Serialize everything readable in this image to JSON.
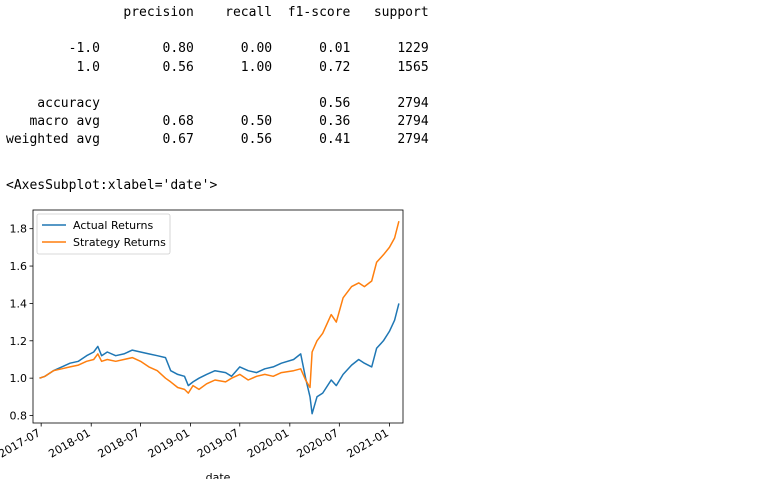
{
  "report": {
    "header": [
      "precision",
      "recall",
      "f1-score",
      "support"
    ],
    "rows": [
      {
        "label": "-1.0",
        "precision": "0.80",
        "recall": "0.00",
        "f1": "0.01",
        "support": "1229"
      },
      {
        "label": "1.0",
        "precision": "0.56",
        "recall": "1.00",
        "f1": "0.72",
        "support": "1565"
      },
      {
        "label": "",
        "precision": "",
        "recall": "",
        "f1": "",
        "support": ""
      },
      {
        "label": "accuracy",
        "precision": "",
        "recall": "",
        "f1": "0.56",
        "support": "2794"
      },
      {
        "label": "macro avg",
        "precision": "0.68",
        "recall": "0.50",
        "f1": "0.36",
        "support": "2794"
      },
      {
        "label": "weighted avg",
        "precision": "0.67",
        "recall": "0.56",
        "f1": "0.41",
        "support": "2794"
      }
    ]
  },
  "output_repr": "<AxesSubplot:xlabel='date'>",
  "chart_data": {
    "type": "line",
    "xlabel": "date",
    "ylabel": "",
    "xlim": [
      "2017-06-01",
      "2021-02-20"
    ],
    "ylim": [
      0.76,
      1.9
    ],
    "yticks": [
      0.8,
      1.0,
      1.2,
      1.4,
      1.6,
      1.8
    ],
    "ytick_labels": [
      "0.8",
      "1.0",
      "1.2",
      "1.4",
      "1.6",
      "1.8"
    ],
    "xticks": [
      "2017-07-01",
      "2018-01-01",
      "2018-07-01",
      "2019-01-01",
      "2019-07-01",
      "2020-01-01",
      "2020-07-01",
      "2021-01-01"
    ],
    "xtick_labels": [
      "2017-07",
      "2018-01",
      "2018-07",
      "2019-01",
      "2019-07",
      "2020-01",
      "2020-07",
      "2021-01"
    ],
    "grid": false,
    "legend_position": "upper-left",
    "series": [
      {
        "name": "Actual Returns",
        "color": "#1f77b4",
        "points": [
          [
            "2017-06-25",
            1.0
          ],
          [
            "2017-07-15",
            1.01
          ],
          [
            "2017-08-15",
            1.04
          ],
          [
            "2017-09-15",
            1.06
          ],
          [
            "2017-10-15",
            1.08
          ],
          [
            "2017-11-15",
            1.09
          ],
          [
            "2017-12-15",
            1.12
          ],
          [
            "2018-01-10",
            1.14
          ],
          [
            "2018-01-25",
            1.17
          ],
          [
            "2018-02-08",
            1.12
          ],
          [
            "2018-03-01",
            1.14
          ],
          [
            "2018-04-01",
            1.12
          ],
          [
            "2018-05-01",
            1.13
          ],
          [
            "2018-06-01",
            1.15
          ],
          [
            "2018-07-01",
            1.14
          ],
          [
            "2018-08-01",
            1.13
          ],
          [
            "2018-09-01",
            1.12
          ],
          [
            "2018-10-01",
            1.11
          ],
          [
            "2018-10-20",
            1.04
          ],
          [
            "2018-11-15",
            1.02
          ],
          [
            "2018-12-10",
            1.01
          ],
          [
            "2018-12-24",
            0.96
          ],
          [
            "2019-01-10",
            0.98
          ],
          [
            "2019-02-01",
            1.0
          ],
          [
            "2019-03-01",
            1.02
          ],
          [
            "2019-04-01",
            1.04
          ],
          [
            "2019-05-10",
            1.03
          ],
          [
            "2019-06-01",
            1.01
          ],
          [
            "2019-07-01",
            1.06
          ],
          [
            "2019-08-01",
            1.04
          ],
          [
            "2019-09-01",
            1.03
          ],
          [
            "2019-10-01",
            1.05
          ],
          [
            "2019-11-01",
            1.06
          ],
          [
            "2019-12-01",
            1.08
          ],
          [
            "2020-01-15",
            1.1
          ],
          [
            "2020-02-10",
            1.13
          ],
          [
            "2020-02-28",
            1.0
          ],
          [
            "2020-03-15",
            0.9
          ],
          [
            "2020-03-23",
            0.81
          ],
          [
            "2020-04-10",
            0.9
          ],
          [
            "2020-05-01",
            0.92
          ],
          [
            "2020-06-01",
            0.99
          ],
          [
            "2020-06-20",
            0.96
          ],
          [
            "2020-07-15",
            1.02
          ],
          [
            "2020-08-15",
            1.07
          ],
          [
            "2020-09-10",
            1.1
          ],
          [
            "2020-10-01",
            1.08
          ],
          [
            "2020-10-28",
            1.06
          ],
          [
            "2020-11-15",
            1.16
          ],
          [
            "2020-12-10",
            1.2
          ],
          [
            "2021-01-01",
            1.25
          ],
          [
            "2021-01-20",
            1.31
          ],
          [
            "2021-02-05",
            1.4
          ]
        ]
      },
      {
        "name": "Strategy Returns",
        "color": "#ff7f0e",
        "points": [
          [
            "2017-06-25",
            1.0
          ],
          [
            "2017-07-15",
            1.01
          ],
          [
            "2017-08-15",
            1.04
          ],
          [
            "2017-09-15",
            1.05
          ],
          [
            "2017-10-15",
            1.06
          ],
          [
            "2017-11-15",
            1.07
          ],
          [
            "2017-12-15",
            1.09
          ],
          [
            "2018-01-10",
            1.1
          ],
          [
            "2018-01-25",
            1.13
          ],
          [
            "2018-02-08",
            1.09
          ],
          [
            "2018-03-01",
            1.1
          ],
          [
            "2018-04-01",
            1.09
          ],
          [
            "2018-05-01",
            1.1
          ],
          [
            "2018-06-01",
            1.11
          ],
          [
            "2018-07-01",
            1.09
          ],
          [
            "2018-08-01",
            1.06
          ],
          [
            "2018-09-01",
            1.04
          ],
          [
            "2018-10-01",
            1.0
          ],
          [
            "2018-10-20",
            0.98
          ],
          [
            "2018-11-15",
            0.95
          ],
          [
            "2018-12-10",
            0.94
          ],
          [
            "2018-12-24",
            0.92
          ],
          [
            "2019-01-10",
            0.96
          ],
          [
            "2019-02-01",
            0.94
          ],
          [
            "2019-03-01",
            0.97
          ],
          [
            "2019-04-01",
            0.99
          ],
          [
            "2019-05-10",
            0.98
          ],
          [
            "2019-06-01",
            1.0
          ],
          [
            "2019-07-01",
            1.02
          ],
          [
            "2019-08-01",
            0.99
          ],
          [
            "2019-09-01",
            1.01
          ],
          [
            "2019-10-01",
            1.02
          ],
          [
            "2019-11-01",
            1.01
          ],
          [
            "2019-12-01",
            1.03
          ],
          [
            "2020-01-15",
            1.04
          ],
          [
            "2020-02-10",
            1.05
          ],
          [
            "2020-02-28",
            0.99
          ],
          [
            "2020-03-15",
            0.95
          ],
          [
            "2020-03-23",
            1.14
          ],
          [
            "2020-04-10",
            1.2
          ],
          [
            "2020-05-01",
            1.24
          ],
          [
            "2020-06-01",
            1.34
          ],
          [
            "2020-06-20",
            1.3
          ],
          [
            "2020-07-15",
            1.43
          ],
          [
            "2020-08-15",
            1.49
          ],
          [
            "2020-09-10",
            1.51
          ],
          [
            "2020-10-01",
            1.49
          ],
          [
            "2020-10-28",
            1.52
          ],
          [
            "2020-11-15",
            1.62
          ],
          [
            "2020-12-10",
            1.66
          ],
          [
            "2021-01-01",
            1.7
          ],
          [
            "2021-01-20",
            1.75
          ],
          [
            "2021-02-05",
            1.84
          ]
        ]
      }
    ]
  }
}
